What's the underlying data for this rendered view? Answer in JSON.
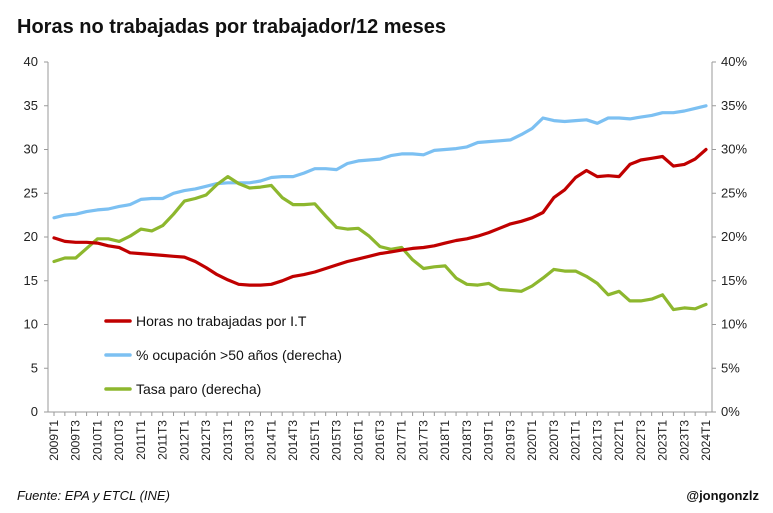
{
  "chart_data": {
    "type": "line",
    "title": "Horas no trabajadas por trabajador/12 meses",
    "x": [
      "2009T1",
      "2009T2",
      "2009T3",
      "2009T4",
      "2010T1",
      "2010T2",
      "2010T3",
      "2010T4",
      "2011T1",
      "2011T2",
      "2011T3",
      "2011T4",
      "2012T1",
      "2012T2",
      "2012T3",
      "2012T4",
      "2013T1",
      "2013T2",
      "2013T3",
      "2013T4",
      "2014T1",
      "2014T2",
      "2014T3",
      "2014T4",
      "2015T1",
      "2015T2",
      "2015T3",
      "2015T4",
      "2016T1",
      "2016T2",
      "2016T3",
      "2016T4",
      "2017T1",
      "2017T2",
      "2017T3",
      "2017T4",
      "2018T1",
      "2018T2",
      "2018T3",
      "2018T4",
      "2019T1",
      "2019T2",
      "2019T3",
      "2019T4",
      "2020T1",
      "2020T2",
      "2020T3",
      "2020T4",
      "2021T1",
      "2021T2",
      "2021T3",
      "2021T4",
      "2022T1",
      "2022T2",
      "2022T3",
      "2022T4",
      "2023T1",
      "2023T2",
      "2023T3",
      "2023T4",
      "2024T1"
    ],
    "x_tick_labels": [
      "2009T1",
      "2009T3",
      "2010T1",
      "2010T3",
      "2011T1",
      "2011T3",
      "2012T1",
      "2012T3",
      "2013T1",
      "2013T3",
      "2014T1",
      "2014T3",
      "2015T1",
      "2015T3",
      "2016T1",
      "2016T3",
      "2017T1",
      "2017T3",
      "2018T1",
      "2018T3",
      "2019T1",
      "2019T3",
      "2020T1",
      "2020T3",
      "2021T1",
      "2021T3",
      "2022T1",
      "2022T3",
      "2023T1",
      "2023T3",
      "2024T1"
    ],
    "y_left": {
      "ylim": [
        0,
        40
      ],
      "ticks": [
        "0",
        "5",
        "10",
        "15",
        "20",
        "25",
        "30",
        "35",
        "40"
      ],
      "tick_values": [
        0,
        5,
        10,
        15,
        20,
        25,
        30,
        35,
        40
      ]
    },
    "y_right": {
      "ylim": [
        0,
        40
      ],
      "ticks": [
        "0%",
        "5%",
        "10%",
        "15%",
        "20%",
        "25%",
        "30%",
        "35%",
        "40%"
      ],
      "tick_values": [
        0,
        5,
        10,
        15,
        20,
        25,
        30,
        35,
        40
      ]
    },
    "legend_position": "lower-left",
    "grid": false,
    "series": [
      {
        "name": "Horas no trabajadas por I.T",
        "axis": "left",
        "color": "#C00000",
        "values": [
          19.9,
          19.5,
          19.4,
          19.4,
          19.3,
          19.0,
          18.8,
          18.2,
          18.1,
          18.0,
          17.9,
          17.8,
          17.7,
          17.2,
          16.5,
          15.7,
          15.1,
          14.6,
          14.5,
          14.5,
          14.6,
          15.0,
          15.5,
          15.7,
          16.0,
          16.4,
          16.8,
          17.2,
          17.5,
          17.8,
          18.1,
          18.3,
          18.5,
          18.7,
          18.8,
          19.0,
          19.3,
          19.6,
          19.8,
          20.1,
          20.5,
          21.0,
          21.5,
          21.8,
          22.2,
          22.8,
          24.5,
          25.4,
          26.8,
          27.6,
          26.9,
          27.0,
          26.9,
          28.3,
          28.8,
          29.0,
          29.2,
          28.1,
          28.3,
          28.9,
          30.0
        ]
      },
      {
        "name": "% ocupación >50 años (derecha)",
        "axis": "right",
        "color": "#7CC0F2",
        "values": [
          22.2,
          22.5,
          22.6,
          22.9,
          23.1,
          23.2,
          23.5,
          23.7,
          24.3,
          24.4,
          24.4,
          25.0,
          25.3,
          25.5,
          25.8,
          26.1,
          26.2,
          26.2,
          26.2,
          26.4,
          26.8,
          26.9,
          26.9,
          27.3,
          27.8,
          27.8,
          27.7,
          28.4,
          28.7,
          28.8,
          28.9,
          29.3,
          29.5,
          29.5,
          29.4,
          29.9,
          30.0,
          30.1,
          30.3,
          30.8,
          30.9,
          31.0,
          31.1,
          31.7,
          32.4,
          33.6,
          33.3,
          33.2,
          33.3,
          33.4,
          33.0,
          33.6,
          33.6,
          33.5,
          33.7,
          33.9,
          34.2,
          34.2,
          34.4,
          34.7,
          35.0
        ]
      },
      {
        "name": "Tasa paro (derecha)",
        "axis": "right",
        "color": "#8DB72E",
        "values": [
          17.2,
          17.6,
          17.6,
          18.7,
          19.8,
          19.8,
          19.5,
          20.1,
          20.9,
          20.7,
          21.3,
          22.6,
          24.1,
          24.4,
          24.8,
          26.0,
          26.9,
          26.1,
          25.6,
          25.7,
          25.9,
          24.5,
          23.7,
          23.7,
          23.8,
          22.4,
          21.1,
          20.9,
          21.0,
          20.1,
          18.9,
          18.6,
          18.8,
          17.4,
          16.4,
          16.6,
          16.7,
          15.3,
          14.6,
          14.5,
          14.7,
          14.0,
          13.9,
          13.8,
          14.4,
          15.3,
          16.3,
          16.1,
          16.1,
          15.5,
          14.7,
          13.4,
          13.8,
          12.7,
          12.7,
          12.9,
          13.4,
          11.7,
          11.9,
          11.8,
          12.3
        ]
      }
    ],
    "source_note": "Fuente: EPA y ETCL (INE)",
    "author": "@jongonzlz"
  }
}
